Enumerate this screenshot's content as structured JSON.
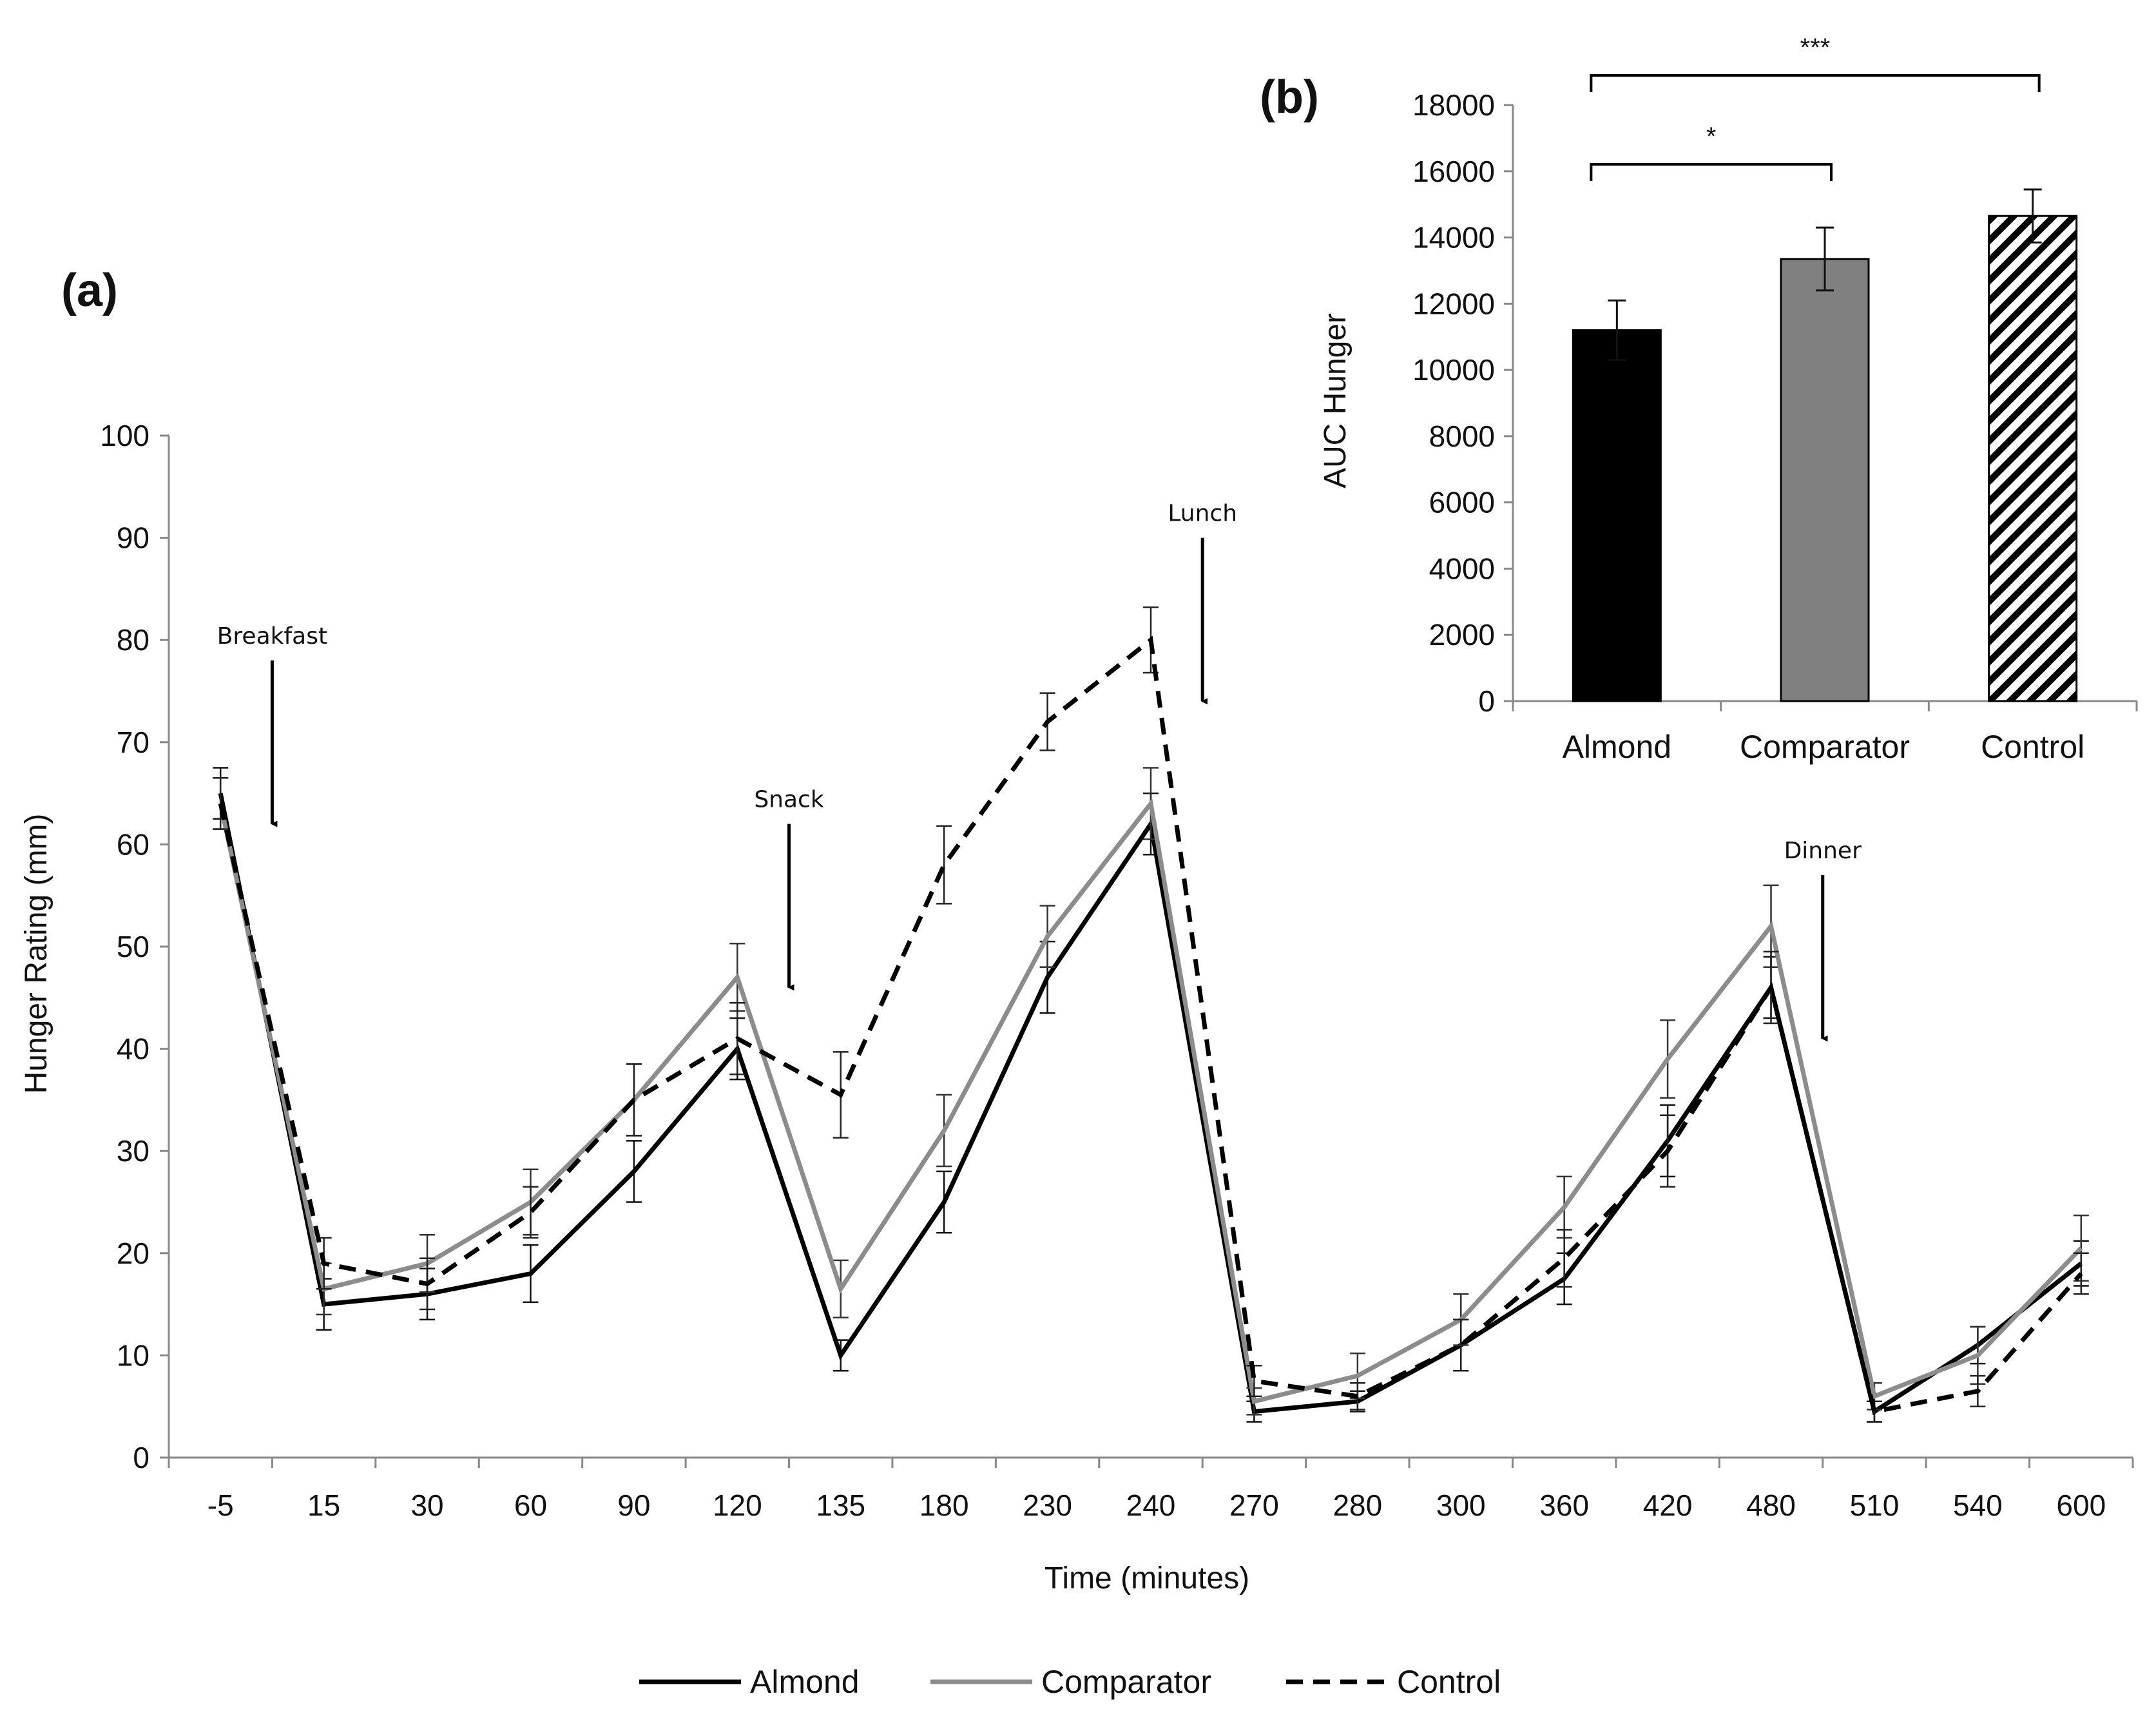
{
  "panel_a_label": "(a)",
  "panel_b_label": "(b)",
  "chart_data": [
    {
      "type": "line",
      "title": "",
      "xlabel": "Time (minutes)",
      "ylabel": "Hunger Rating (mm)",
      "ylim": [
        0,
        100
      ],
      "yticks": [
        0,
        10,
        20,
        30,
        40,
        50,
        60,
        70,
        80,
        90,
        100
      ],
      "categories": [
        "-5",
        "15",
        "30",
        "60",
        "90",
        "120",
        "135",
        "180",
        "230",
        "240",
        "270",
        "280",
        "300",
        "360",
        "420",
        "480",
        "510",
        "540",
        "600"
      ],
      "series": [
        {
          "name": "Almond",
          "color": "#000000",
          "dash": "solid",
          "values": [
            65,
            15,
            16,
            18,
            28,
            40,
            10,
            25,
            47,
            62,
            4.5,
            5.5,
            11,
            17.5,
            31,
            46,
            4.5,
            11,
            19
          ],
          "errors": [
            2.5,
            2.5,
            2.5,
            2.8,
            3,
            3,
            1.5,
            3,
            3.5,
            3,
            1,
            1,
            2.5,
            2.5,
            3.5,
            3,
            1,
            1.8,
            2.2
          ]
        },
        {
          "name": "Comparator",
          "color": "#8c8c8c",
          "dash": "solid",
          "values": [
            64,
            16.5,
            19,
            25,
            35,
            47,
            16.5,
            32,
            51,
            64,
            5.5,
            8,
            13.5,
            24.5,
            39,
            52,
            6,
            10,
            20.5
          ],
          "errors": [
            2.5,
            2.5,
            2.8,
            3.2,
            3.5,
            3.3,
            2.8,
            3.5,
            3,
            3.5,
            1.3,
            2.2,
            2.5,
            3,
            3.8,
            4,
            1.3,
            2.8,
            3.2
          ]
        },
        {
          "name": "Control",
          "color": "#000000",
          "dash": "dashed",
          "values": [
            64,
            19,
            17,
            24,
            35,
            41,
            35.5,
            58,
            72,
            80,
            7.5,
            6,
            11,
            19.5,
            30,
            46,
            4.5,
            6.5,
            18
          ],
          "errors": [
            2.5,
            2.5,
            2.5,
            2.5,
            3.5,
            3.5,
            4.2,
            3.8,
            2.8,
            3.2,
            1.5,
            1.3,
            2.5,
            2.8,
            3.5,
            3.5,
            1,
            1.5,
            2
          ]
        }
      ],
      "annotations": [
        {
          "text": "Breakfast",
          "x_between": [
            "-5",
            "15"
          ],
          "arrow_from": 78,
          "arrow_to": 62
        },
        {
          "text": "Snack",
          "x_between": [
            "120",
            "135"
          ],
          "arrow_from": 62,
          "arrow_to": 46
        },
        {
          "text": "Lunch",
          "x_between": [
            "240",
            "270"
          ],
          "arrow_from": 90,
          "arrow_to": 74
        },
        {
          "text": "Dinner",
          "x_between": [
            "480",
            "510"
          ],
          "arrow_from": 57,
          "arrow_to": 41
        }
      ],
      "legend": {
        "position": "bottom",
        "entries": [
          "Almond",
          "Comparator",
          "Control"
        ]
      },
      "grid": false
    },
    {
      "type": "bar",
      "title": "",
      "xlabel": "",
      "ylabel": "AUC Hunger",
      "ylim": [
        0,
        18000
      ],
      "yticks": [
        0,
        2000,
        4000,
        6000,
        8000,
        10000,
        12000,
        14000,
        16000,
        18000
      ],
      "categories": [
        "Almond",
        "Comparator",
        "Control"
      ],
      "values": [
        11200,
        13350,
        14650
      ],
      "errors": [
        900,
        950,
        800
      ],
      "fills": [
        "#000000",
        "#808080",
        "hatch"
      ],
      "significance": [
        {
          "from": "Almond",
          "to": "Comparator",
          "label": "*"
        },
        {
          "from": "Almond",
          "to": "Control",
          "label": "***"
        }
      ],
      "grid": false
    }
  ]
}
